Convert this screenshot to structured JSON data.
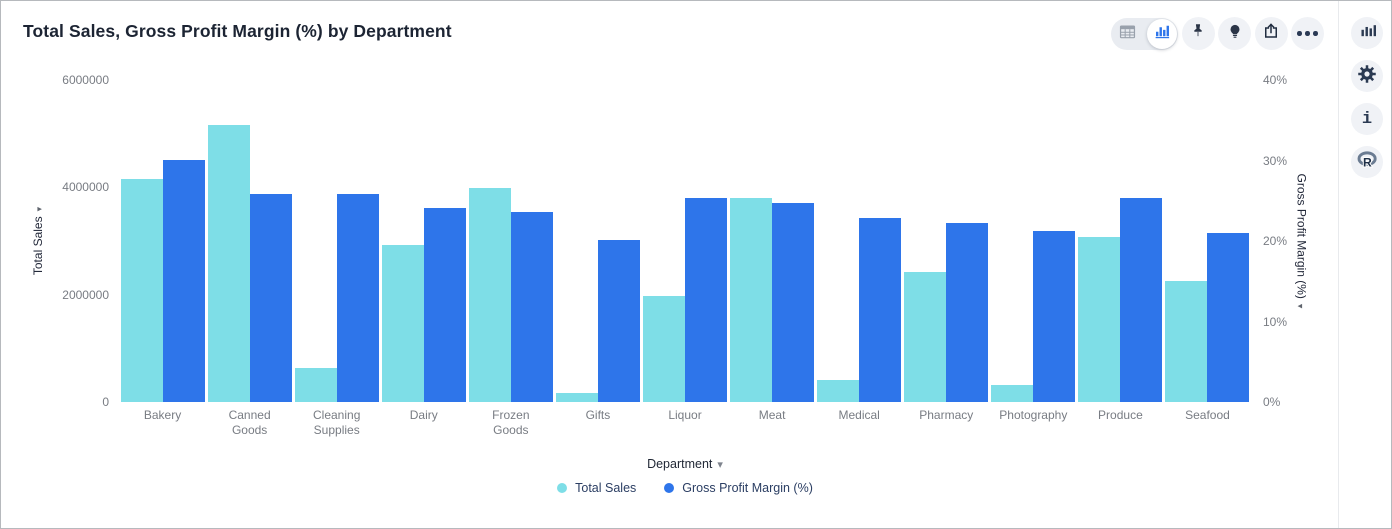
{
  "header": {
    "title": "Total Sales, Gross Profit Margin (%) by Department"
  },
  "toolbar": {
    "view_toggle": {
      "options": [
        "table-view-icon",
        "chart-view-icon"
      ],
      "active": "chart-view-icon"
    },
    "actions": [
      "pin-icon",
      "lightbulb-icon",
      "share-icon",
      "ellipsis-icon"
    ]
  },
  "right_rail": {
    "actions": [
      "bar-chart-icon",
      "gear-icon",
      "info-icon",
      "r-logo-icon"
    ]
  },
  "icons": {
    "sort_caret": "▾",
    "department_caret": "▾",
    "info_glyph": "i"
  },
  "chart_data": {
    "type": "bar",
    "title": "Total Sales, Gross Profit Margin (%) by Department",
    "grid": false,
    "legend_position": "bottom",
    "categories": [
      "Bakery",
      "Canned Goods",
      "Cleaning Supplies",
      "Dairy",
      "Frozen Goods",
      "Gifts",
      "Liquor",
      "Meat",
      "Medical",
      "Pharmacy",
      "Photography",
      "Produce",
      "Seafood"
    ],
    "series": [
      {
        "name": "Total Sales",
        "axis": "left",
        "color": "#7EDEE7",
        "values": [
          4150000,
          5160000,
          640000,
          2920000,
          3980000,
          170000,
          1980000,
          3810000,
          420000,
          2420000,
          320000,
          3070000,
          2260000
        ]
      },
      {
        "name": "Gross Profit Margin (%)",
        "axis": "right",
        "color": "#2E75EA",
        "values": [
          30.1,
          25.9,
          25.8,
          24.1,
          23.6,
          20.1,
          25.4,
          24.7,
          22.9,
          22.2,
          21.2,
          25.3,
          21.0
        ]
      }
    ],
    "left_axis": {
      "label": "Total Sales",
      "range": [
        0,
        6000000
      ],
      "ticks": [
        "6000000",
        "4000000",
        "2000000",
        "0"
      ]
    },
    "right_axis": {
      "label": "Gross Profit Margin (%)",
      "range": [
        0,
        40
      ],
      "ticks": [
        "40%",
        "30%",
        "20%",
        "10%",
        "0%"
      ]
    },
    "x_axis": {
      "label": "Department"
    },
    "legend": [
      {
        "label": "Total Sales",
        "color": "#7EDEE7"
      },
      {
        "label": "Gross Profit Margin (%)",
        "color": "#2E75EA"
      }
    ]
  }
}
